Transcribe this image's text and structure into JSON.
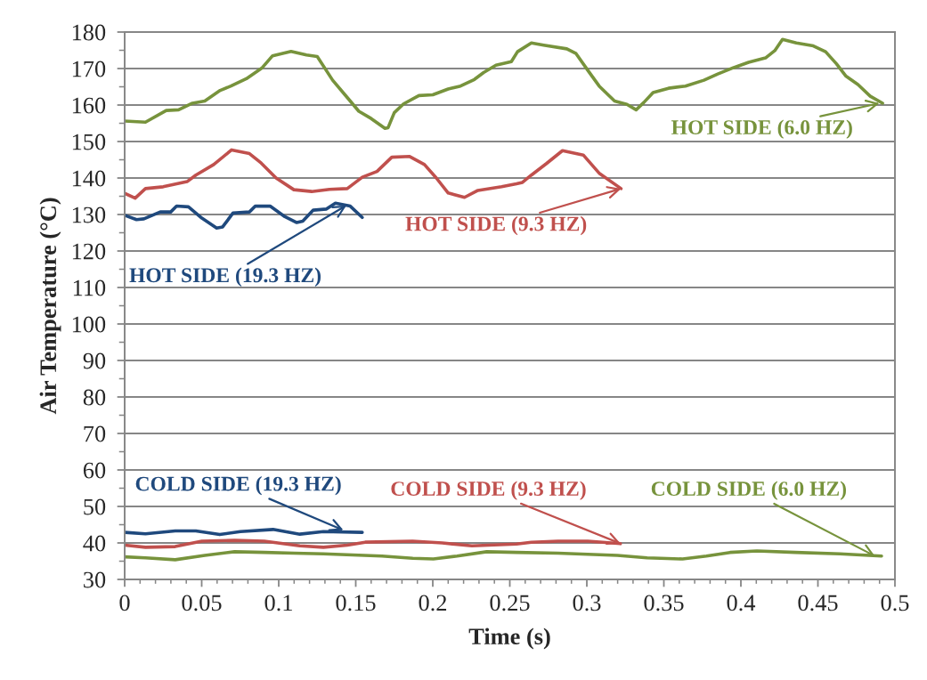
{
  "chart_data": {
    "type": "line",
    "xlabel": "Time (s)",
    "ylabel": "Air Temperature (°C)",
    "xlim": [
      0,
      0.5
    ],
    "xticks": [
      0,
      0.05,
      0.1,
      0.15,
      0.2,
      0.25,
      0.3,
      0.35,
      0.4,
      0.45,
      0.5
    ],
    "ylim": [
      30,
      180
    ],
    "yticks": [
      30,
      40,
      50,
      60,
      70,
      80,
      90,
      100,
      110,
      120,
      130,
      140,
      150,
      160,
      170,
      180
    ],
    "grid": "y",
    "marker": "none",
    "line_style": "solid",
    "series": [
      {
        "color": "#77933c",
        "x": [
          0,
          0.0135,
          0.027,
          0.035,
          0.044,
          0.052,
          0.062,
          0.069,
          0.079,
          0.089,
          0.096,
          0.108,
          0.118,
          0.125,
          0.135,
          0.143,
          0.152,
          0.16,
          0.169,
          0.171,
          0.175,
          0.181,
          0.191,
          0.2,
          0.21,
          0.218,
          0.227,
          0.233,
          0.241,
          0.251,
          0.255,
          0.264,
          0.272,
          0.287,
          0.293,
          0.301,
          0.308,
          0.318,
          0.326,
          0.332,
          0.337,
          0.343,
          0.353,
          0.364,
          0.376,
          0.385,
          0.395,
          0.405,
          0.416,
          0.422,
          0.427,
          0.436,
          0.447,
          0.455,
          0.462,
          0.468,
          0.476,
          0.484,
          0.492
        ],
        "values": [
          155.6,
          155.3,
          158.5,
          158.7,
          160.5,
          161.1,
          164.0,
          165.2,
          167.2,
          170.1,
          173.5,
          174.7,
          173.7,
          173.3,
          166.8,
          162.8,
          158.3,
          156.3,
          153.6,
          153.8,
          157.9,
          160.3,
          162.6,
          162.8,
          164.4,
          165.2,
          167.0,
          168.9,
          170.9,
          171.9,
          174.6,
          177.0,
          176.4,
          175.4,
          174.1,
          169.3,
          165.2,
          161.1,
          160.2,
          158.7,
          160.7,
          163.4,
          164.6,
          165.2,
          166.8,
          168.5,
          170.2,
          171.7,
          172.9,
          174.9,
          178.0,
          177.0,
          176.2,
          174.6,
          171.3,
          168.0,
          165.6,
          162.4,
          160.5
        ]
      },
      {
        "color": "#c0504d",
        "x": [
          0,
          0.0068,
          0.0135,
          0.025,
          0.0405,
          0.0462,
          0.0578,
          0.0694,
          0.081,
          0.0886,
          0.0983,
          0.1098,
          0.1214,
          0.133,
          0.1445,
          0.1542,
          0.1638,
          0.1734,
          0.185,
          0.1946,
          0.2023,
          0.21,
          0.2206,
          0.2293,
          0.2447,
          0.2543,
          0.2582,
          0.264,
          0.2736,
          0.2842,
          0.2977,
          0.3083,
          0.3222
        ],
        "values": [
          135.8,
          134.5,
          137.1,
          137.6,
          139.0,
          140.8,
          143.7,
          147.7,
          146.7,
          144.1,
          140.0,
          136.8,
          136.3,
          136.9,
          137.1,
          140.2,
          141.8,
          145.7,
          145.9,
          143.7,
          140.0,
          135.9,
          134.7,
          136.6,
          137.6,
          138.4,
          138.8,
          140.8,
          143.9,
          147.5,
          146.3,
          141.2,
          137.1
        ]
      },
      {
        "color": "#1f497d",
        "x": [
          0,
          0.0077,
          0.0125,
          0.0231,
          0.0299,
          0.0337,
          0.0414,
          0.0501,
          0.0597,
          0.0636,
          0.0703,
          0.081,
          0.0848,
          0.0944,
          0.104,
          0.1117,
          0.1156,
          0.1224,
          0.131,
          0.1368,
          0.1464,
          0.1542
        ],
        "values": [
          129.8,
          128.6,
          128.8,
          130.7,
          130.7,
          132.3,
          132.1,
          129.0,
          126.3,
          126.6,
          130.4,
          130.7,
          132.3,
          132.3,
          129.4,
          127.8,
          128.2,
          131.2,
          131.5,
          133.1,
          132.3,
          129.2
        ]
      },
      {
        "color": "#1f497d",
        "x": [
          0,
          0.0135,
          0.0328,
          0.0462,
          0.0617,
          0.0751,
          0.0963,
          0.1137,
          0.129,
          0.1542
        ],
        "values": [
          42.9,
          42.5,
          43.3,
          43.3,
          42.3,
          43.1,
          43.7,
          42.4,
          43.1,
          42.9
        ]
      },
      {
        "color": "#c0504d",
        "x": [
          0,
          0.0135,
          0.0328,
          0.0501,
          0.0713,
          0.0906,
          0.1137,
          0.129,
          0.1445,
          0.1561,
          0.1869,
          0.2062,
          0.2254,
          0.2543,
          0.264,
          0.2813,
          0.3006,
          0.3218
        ],
        "values": [
          39.4,
          38.8,
          39.0,
          40.5,
          40.7,
          40.5,
          39.2,
          38.8,
          39.4,
          40.2,
          40.5,
          40.0,
          39.2,
          39.7,
          40.2,
          40.5,
          40.5,
          39.8
        ]
      },
      {
        "color": "#77933c",
        "x": [
          0,
          0.0135,
          0.0328,
          0.052,
          0.0713,
          0.0906,
          0.11,
          0.129,
          0.148,
          0.167,
          0.187,
          0.2004,
          0.2158,
          0.235,
          0.2543,
          0.2813,
          0.3198,
          0.3391,
          0.3622,
          0.3776,
          0.393,
          0.4104,
          0.4354,
          0.4643,
          0.4913
        ],
        "values": [
          36.2,
          35.9,
          35.4,
          36.6,
          37.6,
          37.4,
          37.2,
          37.0,
          36.7,
          36.4,
          35.8,
          35.6,
          36.4,
          37.6,
          37.4,
          37.2,
          36.6,
          35.9,
          35.6,
          36.4,
          37.4,
          37.8,
          37.4,
          37.0,
          36.4
        ]
      }
    ],
    "annotations": [
      {
        "text": "HOT SIDE (6.0 HZ)",
        "x": 0.49,
        "y": 160.5
      },
      {
        "text": "HOT SIDE (9.3 HZ)",
        "x": 0.3222,
        "y": 137.1
      },
      {
        "text": "HOT SIDE (19.3 HZ)",
        "x": 0.144,
        "y": 132.5
      },
      {
        "text": "COLD SIDE (19.3 HZ)",
        "x": 0.142,
        "y": 43.5
      },
      {
        "text": "COLD SIDE (9.3 HZ)",
        "x": 0.322,
        "y": 39.8
      },
      {
        "text": "COLD SIDE (6.0 HZ)",
        "x": 0.487,
        "y": 36.4
      }
    ]
  }
}
